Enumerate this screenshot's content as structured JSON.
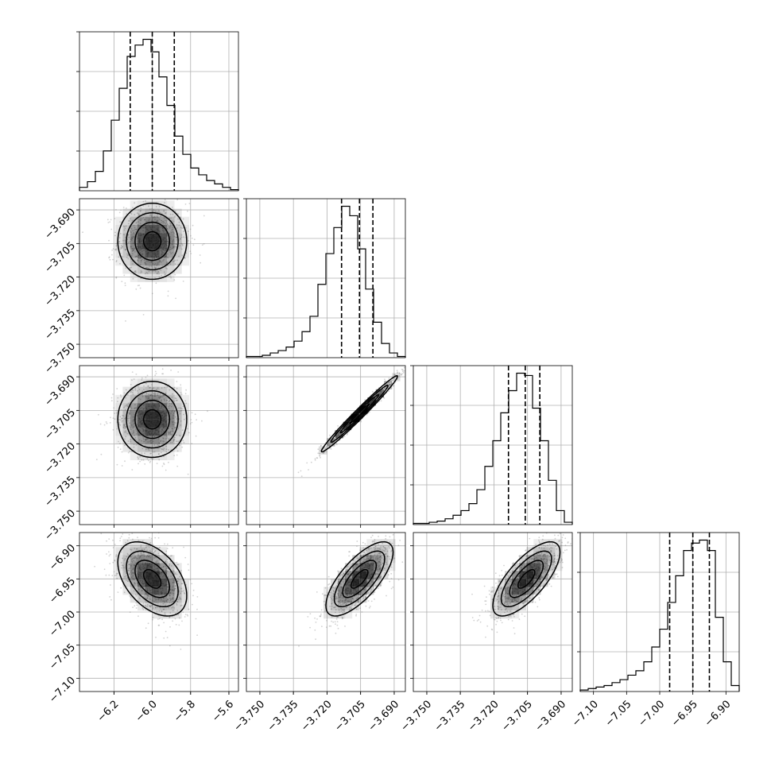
{
  "chart_data": {
    "type": "scatter",
    "title": "",
    "parameters": [
      {
        "range": [
          -6.38,
          -5.55
        ],
        "ticks": [
          -6.2,
          -6.0,
          -5.8,
          -5.6
        ],
        "tick_labels": [
          "−6.2",
          "−6.0",
          "−5.8",
          "−5.6"
        ],
        "quantiles": [
          -6.115,
          -6.0,
          -5.885
        ],
        "mean": -6.0,
        "sigma": 0.09,
        "hist_counts": [
          3,
          8,
          17,
          35,
          62,
          90,
          118,
          128,
          133,
          122,
          100,
          75,
          48,
          32,
          20,
          14,
          9,
          6,
          3,
          1
        ]
      },
      {
        "range": [
          -3.756,
          -3.685
        ],
        "ticks": [
          -3.75,
          -3.735,
          -3.72,
          -3.705,
          -3.69
        ],
        "tick_labels": [
          "−3.750",
          "−3.735",
          "−3.720",
          "−3.705",
          "−3.690"
        ],
        "quantiles": [
          -3.7135,
          -3.7055,
          -3.6995
        ],
        "mean": -3.7055,
        "sigma": 0.006,
        "hist_counts": [
          1,
          1,
          2,
          4,
          6,
          9,
          14,
          22,
          35,
          62,
          88,
          110,
          128,
          120,
          92,
          58,
          30,
          12,
          4,
          1
        ]
      },
      {
        "range": [
          -3.756,
          -3.685
        ],
        "ticks": [
          -3.75,
          -3.735,
          -3.72,
          -3.705,
          -3.69
        ],
        "tick_labels": [
          "−3.750",
          "−3.735",
          "−3.720",
          "−3.705",
          "−3.690"
        ],
        "quantiles": [
          -3.7135,
          -3.706,
          -3.6995
        ],
        "mean": -3.7055,
        "sigma": 0.006,
        "hist_counts": [
          1,
          1,
          2,
          3,
          5,
          8,
          12,
          18,
          30,
          50,
          72,
          96,
          115,
          130,
          128,
          100,
          72,
          38,
          12,
          2
        ]
      },
      {
        "range": [
          -7.12,
          -6.88
        ],
        "ticks": [
          -7.1,
          -7.05,
          -7.0,
          -6.95,
          -6.9
        ],
        "tick_labels": [
          "−7.10",
          "−7.05",
          "−7.00",
          "−6.95",
          "−6.90"
        ],
        "quantiles": [
          -6.985,
          -6.95,
          -6.925
        ],
        "mean": -6.95,
        "sigma": 0.028,
        "hist_counts": [
          1,
          2,
          3,
          4,
          6,
          8,
          11,
          14,
          20,
          30,
          42,
          60,
          78,
          95,
          100,
          102,
          95,
          50,
          20,
          4
        ]
      }
    ],
    "pairs": [
      {
        "row": 1,
        "col": 0,
        "mean": [
          -6.0,
          -3.704
        ],
        "sigma": [
          0.09,
          0.0085
        ],
        "rho": 0.0
      },
      {
        "row": 2,
        "col": 0,
        "mean": [
          -6.0,
          -3.709
        ],
        "sigma": [
          0.09,
          0.0085
        ],
        "rho": 0.0
      },
      {
        "row": 2,
        "col": 1,
        "mean": [
          -3.7055,
          -3.7065
        ],
        "sigma": [
          0.0085,
          0.0085
        ],
        "rho": 0.985
      },
      {
        "row": 3,
        "col": 0,
        "mean": [
          -6.0,
          -6.95
        ],
        "sigma": [
          0.09,
          0.028
        ],
        "rho": -0.45
      },
      {
        "row": 3,
        "col": 1,
        "mean": [
          -3.7055,
          -6.95
        ],
        "sigma": [
          0.0075,
          0.028
        ],
        "rho": 0.72
      },
      {
        "row": 3,
        "col": 2,
        "mean": [
          -3.7055,
          -6.95
        ],
        "sigma": [
          0.0075,
          0.028
        ],
        "rho": 0.72
      }
    ],
    "grid": true,
    "colors": {
      "line": "#000000",
      "grid": "#b0b0b0",
      "density": "#000000",
      "scatter": "#7f7f7f"
    }
  }
}
